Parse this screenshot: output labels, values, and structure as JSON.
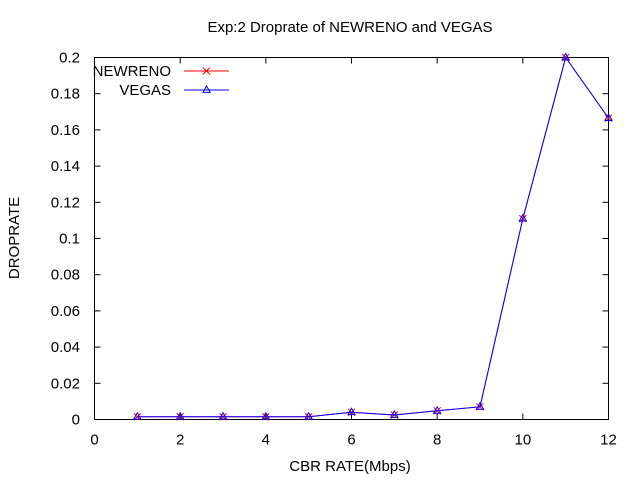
{
  "chart_data": {
    "type": "line",
    "title": "Exp:2 Droprate of NEWRENO and VEGAS",
    "xlabel": "CBR RATE(Mbps)",
    "ylabel": "DROPRATE",
    "xlim": [
      0,
      12
    ],
    "ylim": [
      0,
      0.2
    ],
    "xticks": [
      "0",
      "2",
      "4",
      "6",
      "8",
      "10",
      "12"
    ],
    "yticks": [
      "0",
      "0.02",
      "0.04",
      "0.06",
      "0.08",
      "0.1",
      "0.12",
      "0.14",
      "0.16",
      "0.18",
      "0.2"
    ],
    "grid": false,
    "legend_position": "top-left",
    "x": [
      1,
      2,
      3,
      4,
      5,
      6,
      7,
      8,
      9,
      10,
      11,
      12
    ],
    "series": [
      {
        "name": "NEWRENO",
        "color": "#ff0000",
        "marker": "x",
        "values": [
          0.0015,
          0.0015,
          0.0015,
          0.0015,
          0.0015,
          0.004,
          0.0025,
          0.0048,
          0.007,
          0.111,
          0.2,
          0.1665
        ]
      },
      {
        "name": "VEGAS",
        "color": "#0000ff",
        "marker": "triangle",
        "values": [
          0.0015,
          0.0015,
          0.0015,
          0.0015,
          0.0015,
          0.004,
          0.0025,
          0.0048,
          0.007,
          0.111,
          0.2,
          0.1665
        ]
      }
    ]
  }
}
